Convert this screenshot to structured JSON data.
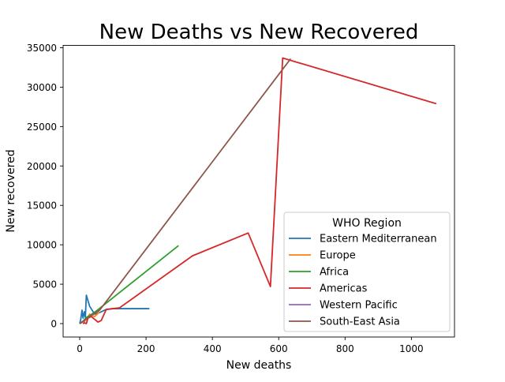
{
  "chart_data": {
    "type": "line",
    "title": "New Deaths vs New Recovered",
    "xlabel": "New deaths",
    "ylabel": "New recovered",
    "xlim": [
      -50,
      1130
    ],
    "ylim": [
      -1700,
      35300
    ],
    "xticks": [
      0,
      200,
      400,
      600,
      800,
      1000
    ],
    "yticks": [
      0,
      5000,
      10000,
      15000,
      20000,
      25000,
      30000,
      35000
    ],
    "grid": false,
    "legend": {
      "title": "WHO Region",
      "placement": "lower-right"
    },
    "series": [
      {
        "name": "Eastern Mediterranean",
        "color": "#1f77b4",
        "points": [
          [
            0,
            0
          ],
          [
            3,
            500
          ],
          [
            7,
            1700
          ],
          [
            10,
            700
          ],
          [
            14,
            1500
          ],
          [
            17,
            800
          ],
          [
            20,
            3600
          ],
          [
            30,
            2200
          ],
          [
            45,
            1200
          ],
          [
            60,
            1400
          ],
          [
            80,
            1800
          ],
          [
            100,
            1900
          ],
          [
            150,
            1900
          ],
          [
            210,
            1900
          ]
        ]
      },
      {
        "name": "Europe",
        "color": "#ff7f0e",
        "points": [
          [
            0,
            0
          ],
          [
            10,
            200
          ],
          [
            20,
            500
          ],
          [
            30,
            1200
          ],
          [
            45,
            900
          ],
          [
            60,
            1500
          ]
        ]
      },
      {
        "name": "Africa",
        "color": "#2ca02c",
        "points": [
          [
            0,
            0
          ],
          [
            10,
            300
          ],
          [
            20,
            800
          ],
          [
            30,
            1000
          ],
          [
            50,
            1600
          ],
          [
            298,
            9900
          ]
        ]
      },
      {
        "name": "Americas",
        "color": "#d62728",
        "points": [
          [
            10,
            0
          ],
          [
            15,
            100
          ],
          [
            20,
            0
          ],
          [
            25,
            700
          ],
          [
            35,
            900
          ],
          [
            55,
            200
          ],
          [
            65,
            400
          ],
          [
            80,
            1800
          ],
          [
            120,
            2000
          ],
          [
            340,
            8600
          ],
          [
            508,
            11500
          ],
          [
            575,
            4700
          ],
          [
            612,
            33700
          ],
          [
            1075,
            27900
          ]
        ]
      },
      {
        "name": "Western Pacific",
        "color": "#9467bd",
        "points": [
          [
            0,
            0
          ],
          [
            4,
            100
          ],
          [
            8,
            200
          ],
          [
            12,
            300
          ],
          [
            16,
            200
          ]
        ]
      },
      {
        "name": "South-East Asia",
        "color": "#8c564b",
        "points": [
          [
            0,
            0
          ],
          [
            30,
            900
          ],
          [
            60,
            1700
          ],
          [
            636,
            33600
          ]
        ]
      }
    ]
  }
}
